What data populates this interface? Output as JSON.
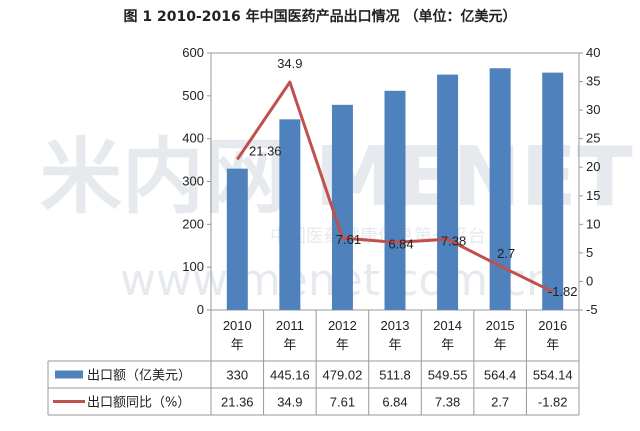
{
  "title": "图 1    2010-2016 年中国医药产品出口情况  （单位：亿美元）",
  "watermark": {
    "main": "米内网 MENET",
    "sub": "中国医药健康信息第一平台",
    "url": "www.menet.com.cn"
  },
  "colors": {
    "bar": "#4f81bd",
    "line": "#c0504d",
    "axis": "#888888",
    "grid": "#d9d9d9"
  },
  "chart_data": {
    "type": "bar",
    "categories": [
      "2010年",
      "2011年",
      "2012年",
      "2013年",
      "2014年",
      "2015年",
      "2016年"
    ],
    "category_lines": [
      [
        "2010",
        "年"
      ],
      [
        "2011",
        "年"
      ],
      [
        "2012",
        "年"
      ],
      [
        "2013",
        "年"
      ],
      [
        "2014",
        "年"
      ],
      [
        "2015",
        "年"
      ],
      [
        "2016",
        "年"
      ]
    ],
    "series": [
      {
        "name": "出口额（亿美元）",
        "type": "bar",
        "axis": "left",
        "values": [
          330,
          445.16,
          479.02,
          511.8,
          549.55,
          564.4,
          554.14
        ],
        "labels": [
          "330",
          "445.16",
          "479.02",
          "511.8",
          "549.55",
          "564.4",
          "554.14"
        ]
      },
      {
        "name": "出口额同比（%）",
        "type": "line",
        "axis": "right",
        "values": [
          21.36,
          34.9,
          7.61,
          6.84,
          7.38,
          2.7,
          -1.82
        ],
        "labels": [
          "21.36",
          "34.9",
          "7.61",
          "6.84",
          "7.38",
          "2.7",
          "-1.82"
        ]
      }
    ],
    "y_left": {
      "min": 0,
      "max": 600,
      "step": 100,
      "ticks": [
        "0",
        "100",
        "200",
        "300",
        "400",
        "500",
        "600"
      ]
    },
    "y_right": {
      "min": -5,
      "max": 40,
      "step": 5,
      "ticks": [
        "-5",
        "0",
        "5",
        "10",
        "15",
        "20",
        "25",
        "30",
        "35",
        "40"
      ]
    },
    "legend_placement": "data-table",
    "grid": false
  }
}
